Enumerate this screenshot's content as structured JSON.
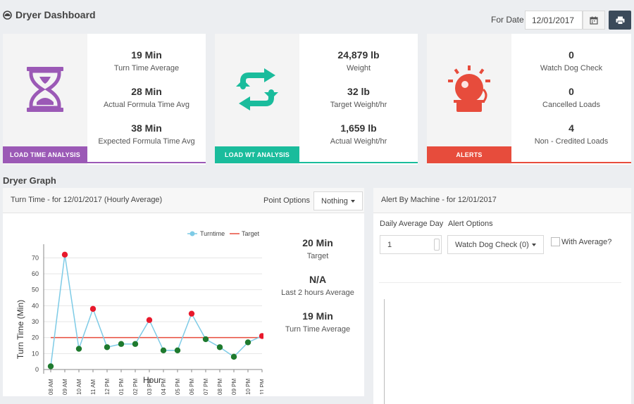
{
  "header": {
    "title": "Dryer Dashboard",
    "for_date_label": "For Date",
    "date_value": "12/01/2017"
  },
  "cards": [
    {
      "tag": "LOAD TIME ANALYSIS",
      "color": "#9b59b6",
      "icon": "hourglass-icon",
      "metrics": [
        {
          "value": "19 Min",
          "label": "Turn Time Average"
        },
        {
          "value": "28 Min",
          "label": "Actual Formula Time Avg"
        },
        {
          "value": "38 Min",
          "label": "Expected Formula Time Avg"
        }
      ]
    },
    {
      "tag": "LOAD WT ANALYSIS",
      "color": "#1abc9c",
      "icon": "refresh-icon",
      "metrics": [
        {
          "value": "24,879 lb",
          "label": "Weight"
        },
        {
          "value": "32 lb",
          "label": "Target Weight/hr"
        },
        {
          "value": "1,659 lb",
          "label": "Actual Weight/hr"
        }
      ]
    },
    {
      "tag": "ALERTS",
      "color": "#e74c3c",
      "icon": "alarm-bell-icon",
      "metrics": [
        {
          "value": "0",
          "label": "Watch Dog Check"
        },
        {
          "value": "0",
          "label": "Cancelled Loads"
        },
        {
          "value": "4",
          "label": "Non - Credited Loads"
        }
      ]
    }
  ],
  "graph_section": {
    "title": "Dryer Graph"
  },
  "turn_panel": {
    "title": "Turn Time - for 12/01/2017 (Hourly Average)",
    "point_options_label": "Point Options",
    "point_options_value": "Nothing",
    "side_metrics": [
      {
        "value": "20 Min",
        "label": "Target"
      },
      {
        "value": "N/A",
        "label": "Last 2 hours Average"
      },
      {
        "value": "19 Min",
        "label": "Turn Time Average"
      }
    ]
  },
  "alert_panel": {
    "title": "Alert By Machine - for 12/01/2017",
    "daily_avg_label": "Daily Average Day",
    "daily_avg_value": "1",
    "alert_options_label": "Alert Options",
    "alert_options_value": "Watch Dog Check (0)",
    "with_average_label": "With Average?"
  },
  "chart_data": {
    "type": "line",
    "xlabel": "Hour",
    "ylabel": "Turn Time (Min)",
    "ylim": [
      0,
      75
    ],
    "yticks": [
      0,
      10,
      20,
      30,
      40,
      50,
      60,
      70
    ],
    "categories": [
      "08 AM",
      "09 AM",
      "10 AM",
      "11 AM",
      "12 PM",
      "01 PM",
      "02 PM",
      "03 PM",
      "04 PM",
      "05 PM",
      "06 PM",
      "07 PM",
      "08 PM",
      "09 PM",
      "10 PM",
      "11 PM"
    ],
    "series": [
      {
        "name": "Turntime",
        "color": "#7ecbe6",
        "values": [
          2,
          72,
          13,
          38,
          14,
          16,
          16,
          31,
          12,
          12,
          35,
          19,
          14,
          8,
          17,
          21
        ]
      },
      {
        "name": "Target",
        "color": "#e74c3c",
        "values": [
          20,
          20,
          20,
          20,
          20,
          20,
          20,
          20,
          20,
          20,
          20,
          20,
          20,
          20,
          20,
          20
        ]
      }
    ],
    "point_colors": {
      "above_target": "#e8192c",
      "below_target": "#1e7a2e"
    },
    "legend_position": "top-right",
    "grid": true
  }
}
